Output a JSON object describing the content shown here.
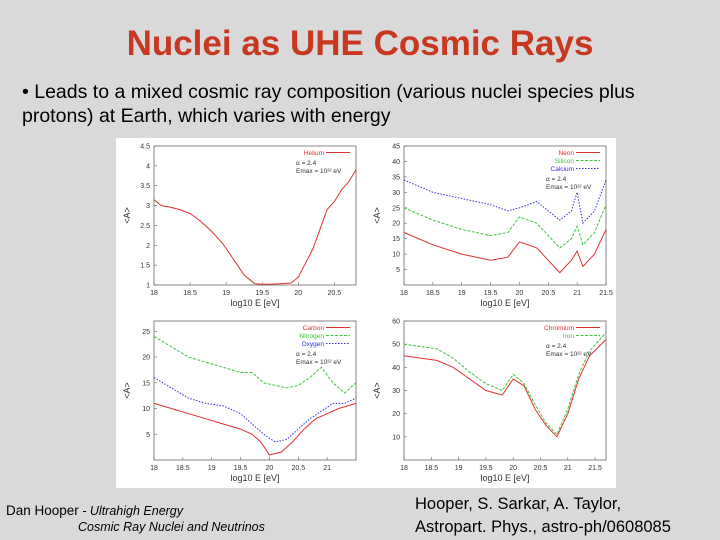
{
  "title": "Nuclei as UHE Cosmic Rays",
  "bullet": "• Leads to a mixed cosmic ray composition (various nuclei species plus protons) at Earth, which varies with energy",
  "credit": {
    "name": "Dan Hooper",
    "sep": " - ",
    "line1": "Ultrahigh Energy",
    "line2": "Cosmic Ray Nuclei and Neutrinos"
  },
  "reference": {
    "line1": "Hooper, S. Sarkar, A. Taylor,",
    "line2": "Astropart. Phys., astro-ph/0608085"
  },
  "colors": {
    "red": "#e03030",
    "green": "#3cc43c",
    "blue": "#3030e0",
    "title": "#c8371f"
  },
  "chart_data": [
    {
      "type": "line",
      "xlabel": "log10 E [eV]",
      "ylabel": "<A>",
      "xlim": [
        18,
        20.8
      ],
      "ylim": [
        1,
        4.5
      ],
      "xticks": [
        "18",
        "18.5",
        "19",
        "19.5",
        "20",
        "20.5"
      ],
      "yticks": [
        "1",
        "1.5",
        "2",
        "2.5",
        "3",
        "3.5",
        "4",
        "4.5"
      ],
      "legend_text": [
        "α = 2.4",
        "Emax = 10²² eV"
      ],
      "series": [
        {
          "name": "Helium",
          "color": "red",
          "x": [
            18,
            18.1,
            18.2,
            18.35,
            18.5,
            18.65,
            18.8,
            18.95,
            19.1,
            19.25,
            19.4,
            19.5,
            19.6,
            19.75,
            19.9,
            20.0,
            20.1,
            20.2,
            20.3,
            20.4,
            20.5,
            20.6,
            20.7,
            20.8
          ],
          "y": [
            3.15,
            3.0,
            2.97,
            2.9,
            2.8,
            2.6,
            2.35,
            2.05,
            1.65,
            1.25,
            1.03,
            1.02,
            1.02,
            1.03,
            1.05,
            1.2,
            1.55,
            1.9,
            2.4,
            2.9,
            3.1,
            3.4,
            3.6,
            3.9
          ]
        }
      ]
    },
    {
      "type": "line",
      "xlabel": "log10 E [eV]",
      "ylabel": "<A>",
      "xlim": [
        18,
        21.5
      ],
      "ylim": [
        0,
        45
      ],
      "xticks": [
        "18",
        "18.5",
        "19",
        "19.5",
        "20",
        "20.5",
        "21",
        "21.5"
      ],
      "yticks": [
        "5",
        "10",
        "15",
        "20",
        "25",
        "30",
        "35",
        "40",
        "45"
      ],
      "legend_text": [
        "α = 2.4",
        "Emax = 10²² eV"
      ],
      "series": [
        {
          "name": "Neon",
          "color": "red",
          "x": [
            18,
            18.5,
            19,
            19.5,
            19.8,
            20,
            20.3,
            20.5,
            20.7,
            20.9,
            21,
            21.1,
            21.3,
            21.5
          ],
          "y": [
            17,
            13,
            10,
            8,
            9,
            14,
            12,
            8,
            4,
            8,
            11,
            6,
            10,
            18
          ]
        },
        {
          "name": "Silicon",
          "color": "green",
          "x": [
            18,
            18.5,
            19,
            19.5,
            19.8,
            20,
            20.3,
            20.5,
            20.7,
            20.9,
            21,
            21.1,
            21.3,
            21.5
          ],
          "y": [
            25,
            21,
            18,
            16,
            17,
            22,
            20,
            16,
            12,
            15,
            19,
            13,
            17,
            26
          ]
        },
        {
          "name": "Calcium",
          "color": "blue",
          "x": [
            18,
            18.5,
            19,
            19.5,
            19.8,
            20,
            20.3,
            20.5,
            20.7,
            20.9,
            21,
            21.1,
            21.3,
            21.5
          ],
          "y": [
            34,
            30,
            28,
            26,
            24,
            25,
            27,
            24,
            21,
            24,
            30,
            20,
            24,
            34
          ]
        }
      ]
    },
    {
      "type": "line",
      "xlabel": "log10 E [eV]",
      "ylabel": "<A>",
      "xlim": [
        18,
        21.5
      ],
      "ylim": [
        0,
        27
      ],
      "xticks": [
        "18",
        "18.5",
        "19",
        "19.5",
        "20",
        "20.5",
        "21"
      ],
      "yticks": [
        "5",
        "10",
        "15",
        "20",
        "25"
      ],
      "legend_text": [
        "α = 2.4",
        "Emax = 10²² eV"
      ],
      "series": [
        {
          "name": "Carbon",
          "color": "red",
          "x": [
            18,
            18.3,
            18.6,
            18.9,
            19.2,
            19.5,
            19.7,
            19.85,
            20,
            20.2,
            20.4,
            20.6,
            20.8,
            21,
            21.2,
            21.5
          ],
          "y": [
            11,
            10,
            9,
            8,
            7,
            6,
            5,
            3.5,
            1,
            1.5,
            3.5,
            6,
            8,
            9,
            10,
            11
          ]
        },
        {
          "name": "Nitrogen",
          "color": "green",
          "x": [
            18,
            18.3,
            18.6,
            18.9,
            19.2,
            19.5,
            19.7,
            19.9,
            20.1,
            20.3,
            20.5,
            20.7,
            20.9,
            21.1,
            21.3,
            21.5
          ],
          "y": [
            24,
            22,
            20,
            19,
            18,
            17,
            17,
            15,
            14.5,
            14,
            14.5,
            16,
            18,
            15,
            13,
            15
          ]
        },
        {
          "name": "Oxygen",
          "color": "blue",
          "x": [
            18,
            18.3,
            18.6,
            18.9,
            19.2,
            19.5,
            19.7,
            19.9,
            20.1,
            20.3,
            20.5,
            20.7,
            20.9,
            21.1,
            21.3,
            21.5
          ],
          "y": [
            16,
            14,
            12,
            11,
            10.5,
            9,
            7,
            5,
            3.5,
            4,
            6,
            8,
            9.5,
            11,
            11,
            12
          ]
        }
      ]
    },
    {
      "type": "line",
      "xlabel": "log10 E [eV]",
      "ylabel": "<A>",
      "xlim": [
        18,
        21.7
      ],
      "ylim": [
        0,
        60
      ],
      "xticks": [
        "18",
        "18.5",
        "19",
        "19.5",
        "20",
        "20.5",
        "21",
        "21.5"
      ],
      "yticks": [
        "10",
        "20",
        "30",
        "40",
        "50",
        "60"
      ],
      "legend_text": [
        "α = 2.4",
        "Emax = 10²² eV"
      ],
      "series": [
        {
          "name": "Chromium",
          "color": "red",
          "x": [
            18,
            18.3,
            18.6,
            18.9,
            19.2,
            19.5,
            19.8,
            20,
            20.2,
            20.4,
            20.6,
            20.8,
            21,
            21.2,
            21.4,
            21.7
          ],
          "y": [
            45,
            44,
            43,
            40,
            35,
            30,
            28,
            35,
            32,
            22,
            15,
            10,
            20,
            35,
            45,
            52
          ]
        },
        {
          "name": "Iron",
          "color": "green",
          "x": [
            18,
            18.3,
            18.6,
            18.9,
            19.2,
            19.5,
            19.8,
            20,
            20.2,
            20.4,
            20.6,
            20.8,
            21,
            21.2,
            21.4,
            21.7
          ],
          "y": [
            50,
            49,
            48,
            44,
            38,
            33,
            30,
            37,
            33,
            24,
            16,
            11,
            22,
            37,
            47,
            55
          ]
        }
      ]
    }
  ]
}
